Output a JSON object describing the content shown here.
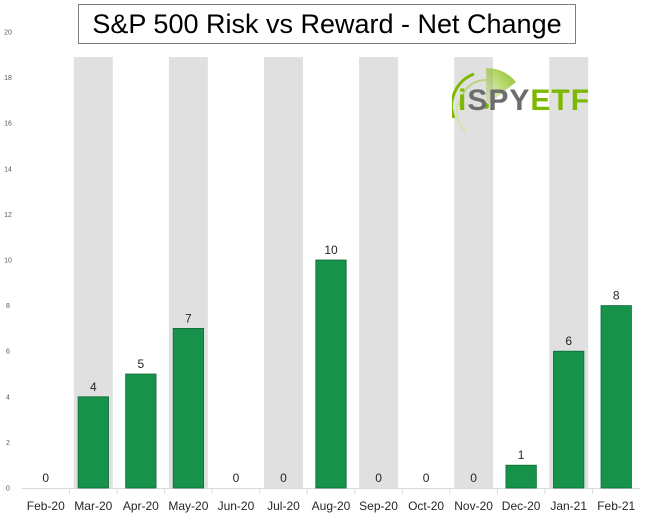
{
  "chart_data": {
    "type": "bar",
    "title": "S&P 500 Risk vs Reward - Net Change",
    "categories": [
      "Feb-20",
      "Mar-20",
      "Apr-20",
      "May-20",
      "Jun-20",
      "Jul-20",
      "Aug-20",
      "Sep-20",
      "Oct-20",
      "Nov-20",
      "Dec-20",
      "Jan-21",
      "Feb-21"
    ],
    "values": [
      0,
      4,
      5,
      7,
      0,
      0,
      10,
      0,
      0,
      0,
      1,
      6,
      8
    ],
    "shaded_categories": [
      "Mar-20",
      "May-20",
      "Jul-20",
      "Sep-20",
      "Nov-20",
      "Jan-21"
    ],
    "ylim": [
      0,
      20
    ],
    "yticks": [
      0,
      2,
      4,
      6,
      8,
      10,
      12,
      14,
      16,
      18,
      20
    ],
    "xlabel": "",
    "ylabel": "",
    "bar_color": "#16924a",
    "band_color": "#e0e0e0",
    "grid": false,
    "legend": "none"
  },
  "logo": {
    "prefix": "i",
    "brand": "SPY",
    "suffix": "ETF",
    "colors": {
      "i": "#7fb800",
      "brand": "#6d6d6d",
      "suffix": "#7fb800",
      "radar": "#7fb800"
    }
  }
}
